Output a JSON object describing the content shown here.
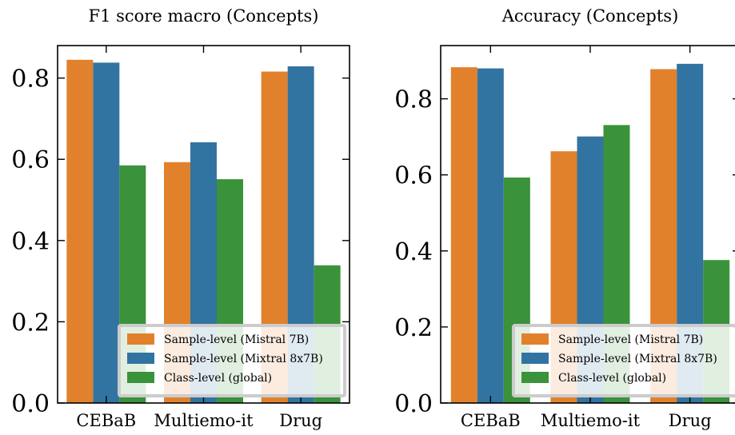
{
  "colors": {
    "series": [
      "#e1812c",
      "#3274a1",
      "#3a923a"
    ],
    "legend_border": "#cccccc",
    "axis": "#000000"
  },
  "chart_data": [
    {
      "type": "bar",
      "title": "F1 score macro (Concepts)",
      "xlabel": "",
      "ylabel": "",
      "categories": [
        "CEBaB",
        "Multiemo-it",
        "Drug"
      ],
      "ylim": [
        0,
        0.88
      ],
      "yticks": [
        0.0,
        0.2,
        0.4,
        0.6,
        0.8
      ],
      "ytick_labels": [
        "0.0",
        "0.2",
        "0.4",
        "0.6",
        "0.8"
      ],
      "grid": false,
      "legend_position": "lower-right",
      "series": [
        {
          "name": "Sample-level (Mistral 7B)",
          "values": [
            0.845,
            0.593,
            0.816
          ]
        },
        {
          "name": "Sample-level (Mixtral 8x7B)",
          "values": [
            0.838,
            0.642,
            0.829
          ]
        },
        {
          "name": "Class-level (global)",
          "values": [
            0.585,
            0.551,
            0.339
          ]
        }
      ]
    },
    {
      "type": "bar",
      "title": "Accuracy (Concepts)",
      "xlabel": "",
      "ylabel": "",
      "categories": [
        "CEBaB",
        "Multiemo-it",
        "Drug"
      ],
      "ylim": [
        0,
        0.94
      ],
      "yticks": [
        0.0,
        0.2,
        0.4,
        0.6,
        0.8
      ],
      "ytick_labels": [
        "0.0",
        "0.2",
        "0.4",
        "0.6",
        "0.8"
      ],
      "grid": false,
      "legend_position": "lower-right",
      "series": [
        {
          "name": "Sample-level (Mistral 7B)",
          "values": [
            0.883,
            0.662,
            0.878
          ]
        },
        {
          "name": "Sample-level (Mixtral 8x7B)",
          "values": [
            0.88,
            0.701,
            0.892
          ]
        },
        {
          "name": "Class-level (global)",
          "values": [
            0.593,
            0.731,
            0.376
          ]
        }
      ]
    }
  ]
}
